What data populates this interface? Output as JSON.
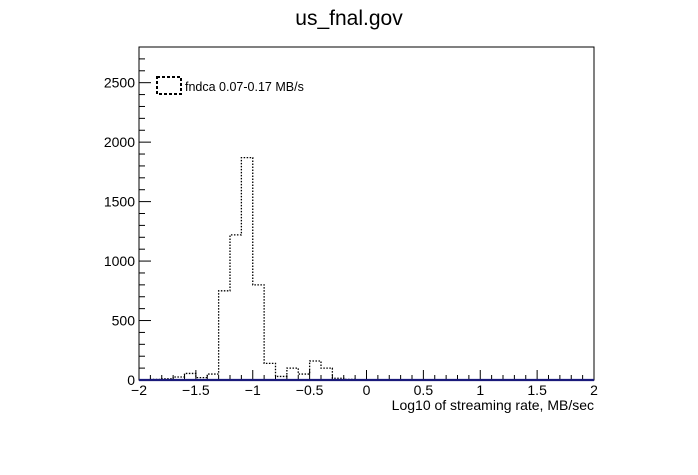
{
  "chart_data": {
    "type": "bar",
    "title": "us_fnal.gov",
    "xlabel": "Log10  of streaming rate, MB/sec",
    "ylabel": "",
    "xlim": [
      -2,
      2
    ],
    "ylim": [
      0,
      2800
    ],
    "x_ticks": [
      -2,
      -1.5,
      -1,
      -0.5,
      0,
      0.5,
      1,
      1.5,
      2
    ],
    "x_tick_labels": [
      "−2",
      "−1.5",
      "−1",
      "−0.5",
      "0",
      "0.5",
      "1",
      "1.5",
      "2"
    ],
    "y_ticks": [
      0,
      500,
      1000,
      1500,
      2000,
      2500
    ],
    "y_tick_labels": [
      "0",
      "500",
      "1000",
      "1500",
      "2000",
      "2500"
    ],
    "bin_width": 0.1,
    "grid": false,
    "legend_position": "top-left",
    "series": [
      {
        "name": "fndca 0.07-0.17 MB/s",
        "style": "dotted-step",
        "color": "#000000",
        "bins": [
          {
            "x0": -1.9,
            "x1": -1.8,
            "y": 5
          },
          {
            "x0": -1.8,
            "x1": -1.7,
            "y": 10
          },
          {
            "x0": -1.7,
            "x1": -1.6,
            "y": 25
          },
          {
            "x0": -1.6,
            "x1": -1.5,
            "y": 55
          },
          {
            "x0": -1.5,
            "x1": -1.4,
            "y": 20
          },
          {
            "x0": -1.4,
            "x1": -1.3,
            "y": 50
          },
          {
            "x0": -1.3,
            "x1": -1.2,
            "y": 750
          },
          {
            "x0": -1.2,
            "x1": -1.1,
            "y": 1220
          },
          {
            "x0": -1.1,
            "x1": -1.0,
            "y": 1870
          },
          {
            "x0": -1.0,
            "x1": -0.9,
            "y": 800
          },
          {
            "x0": -0.9,
            "x1": -0.8,
            "y": 140
          },
          {
            "x0": -0.8,
            "x1": -0.7,
            "y": 30
          },
          {
            "x0": -0.7,
            "x1": -0.6,
            "y": 100
          },
          {
            "x0": -0.6,
            "x1": -0.5,
            "y": 50
          },
          {
            "x0": -0.5,
            "x1": -0.4,
            "y": 160
          },
          {
            "x0": -0.4,
            "x1": -0.3,
            "y": 100
          },
          {
            "x0": -0.3,
            "x1": -0.2,
            "y": 15
          },
          {
            "x0": -0.2,
            "x1": -0.1,
            "y": 5
          }
        ]
      },
      {
        "name": "",
        "style": "solid-line",
        "color": "#1a1a7a",
        "x": [
          -2,
          2
        ],
        "y": [
          0,
          0
        ]
      }
    ]
  }
}
